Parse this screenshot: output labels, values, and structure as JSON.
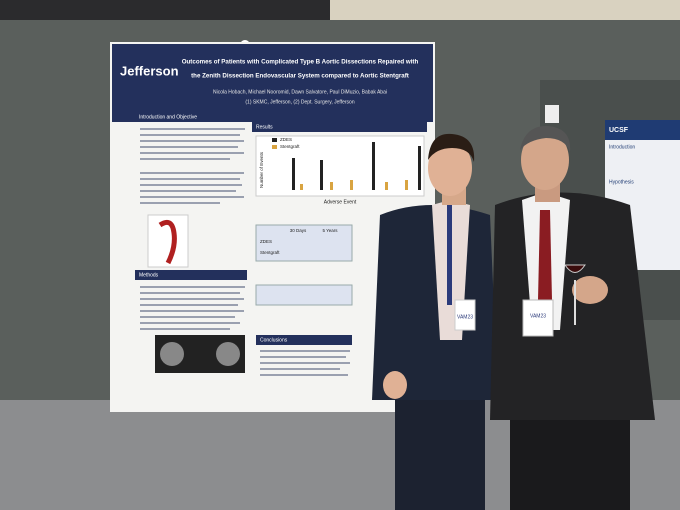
{
  "poster": {
    "logo": "Jefferson",
    "title_lines": [
      "Outcomes of Patients with Complicated Type B Aortic Dissections Repaired with",
      "the Zenith Dissection Endovascular System compared to Aortic Stentgraft"
    ],
    "authors": "Nicola Hobach, Michael Nooromid, Dawn Salvatore, Paul DiMuzio, Babak Abai",
    "affiliations": "(1) SKMC, Jefferson, (2) Dept. Surgery, Jefferson",
    "sections": [
      "Introduction and Objective",
      "Results",
      "Methods",
      "Conclusions"
    ],
    "chart_legend": [
      "ZDES",
      "Stentgraft"
    ],
    "chart_xlabel": "Adverse Event",
    "chart_ylabel": "Number of Events",
    "table_header": [
      "30 Days",
      "5 Years"
    ],
    "table_rows": [
      "ZDES",
      "Stentgraft"
    ]
  },
  "side_poster": {
    "logo": "UCSF",
    "sections": [
      "Introduction",
      "Hypothesis"
    ]
  },
  "badges": [
    "VAM23",
    "VAM23"
  ]
}
